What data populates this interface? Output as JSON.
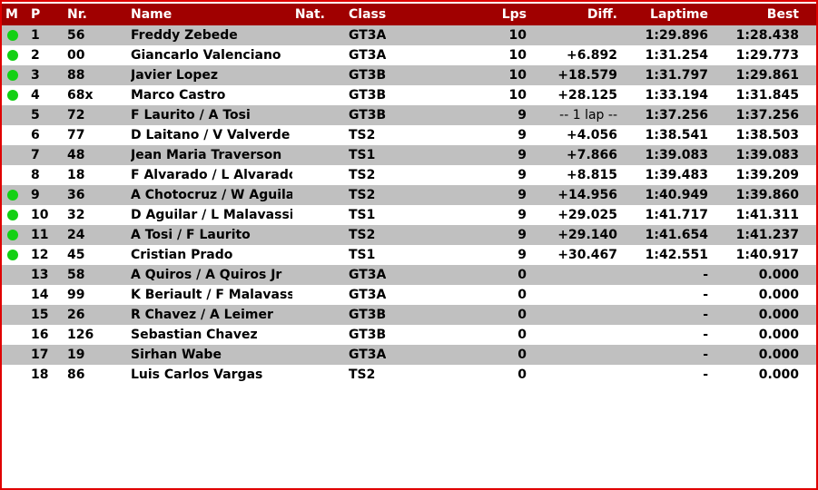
{
  "colors": {
    "header_bg": "#a00000",
    "border": "#e00000",
    "row_alt": "#c0c0c0",
    "marker": "#14d014"
  },
  "headers": {
    "m": "M",
    "p": "P",
    "nr": "Nr.",
    "name": "Name",
    "nat": "Nat.",
    "class": "Class",
    "lps": "Lps",
    "diff": "Diff.",
    "laptime": "Laptime",
    "best": "Best"
  },
  "rows": [
    {
      "marker": true,
      "p": "1",
      "nr": "56",
      "name": "Freddy Zebede",
      "class": "GT3A",
      "lps": "10",
      "diff": "",
      "laptime": "1:29.896",
      "best": "1:28.438"
    },
    {
      "marker": true,
      "p": "2",
      "nr": "00",
      "name": "Giancarlo Valenciano",
      "class": "GT3A",
      "lps": "10",
      "diff": "+6.892",
      "laptime": "1:31.254",
      "best": "1:29.773"
    },
    {
      "marker": true,
      "p": "3",
      "nr": "88",
      "name": "Javier Lopez",
      "class": "GT3B",
      "lps": "10",
      "diff": "+18.579",
      "laptime": "1:31.797",
      "best": "1:29.861"
    },
    {
      "marker": true,
      "p": "4",
      "nr": "68x",
      "name": "Marco Castro",
      "class": "GT3B",
      "lps": "10",
      "diff": "+28.125",
      "laptime": "1:33.194",
      "best": "1:31.845"
    },
    {
      "marker": false,
      "p": "5",
      "nr": "72",
      "name": "F Laurito / A Tosi",
      "class": "GT3B",
      "lps": "9",
      "diff": "-- 1 lap --",
      "laptime": "1:37.256",
      "best": "1:37.256"
    },
    {
      "marker": false,
      "p": "6",
      "nr": "77",
      "name": "D Laitano /  V Valverde",
      "class": "TS2",
      "lps": "9",
      "diff": "+4.056",
      "laptime": "1:38.541",
      "best": "1:38.503"
    },
    {
      "marker": false,
      "p": "7",
      "nr": "48",
      "name": "Jean Maria Traverson",
      "class": "TS1",
      "lps": "9",
      "diff": "+7.866",
      "laptime": "1:39.083",
      "best": "1:39.083"
    },
    {
      "marker": false,
      "p": "8",
      "nr": "18",
      "name": "F Alvarado / L Alvarado",
      "class": "TS2",
      "lps": "9",
      "diff": "+8.815",
      "laptime": "1:39.483",
      "best": "1:39.209"
    },
    {
      "marker": true,
      "p": "9",
      "nr": "36",
      "name": "A Chotocruz / W Aguilar",
      "class": "TS2",
      "lps": "9",
      "diff": "+14.956",
      "laptime": "1:40.949",
      "best": "1:39.860"
    },
    {
      "marker": true,
      "p": "10",
      "nr": "32",
      "name": "D Aguilar /  L Malavassi",
      "class": "TS1",
      "lps": "9",
      "diff": "+29.025",
      "laptime": "1:41.717",
      "best": "1:41.311"
    },
    {
      "marker": true,
      "p": "11",
      "nr": "24",
      "name": "A Tosi /  F Laurito",
      "class": "TS2",
      "lps": "9",
      "diff": "+29.140",
      "laptime": "1:41.654",
      "best": "1:41.237"
    },
    {
      "marker": true,
      "p": "12",
      "nr": "45",
      "name": "Cristian Prado",
      "class": "TS1",
      "lps": "9",
      "diff": "+30.467",
      "laptime": "1:42.551",
      "best": "1:40.917"
    },
    {
      "marker": false,
      "p": "13",
      "nr": "58",
      "name": "A Quiros / A Quiros Jr",
      "class": "GT3A",
      "lps": "0",
      "diff": "",
      "laptime": "-",
      "best": "0.000"
    },
    {
      "marker": false,
      "p": "14",
      "nr": "99",
      "name": "K Beriault / F Malavassi",
      "class": "GT3A",
      "lps": "0",
      "diff": "",
      "laptime": "-",
      "best": "0.000"
    },
    {
      "marker": false,
      "p": "15",
      "nr": "26",
      "name": "R Chavez / A Leimer",
      "class": "GT3B",
      "lps": "0",
      "diff": "",
      "laptime": "-",
      "best": "0.000"
    },
    {
      "marker": false,
      "p": "16",
      "nr": "126",
      "name": "Sebastian Chavez",
      "class": "GT3B",
      "lps": "0",
      "diff": "",
      "laptime": "-",
      "best": "0.000"
    },
    {
      "marker": false,
      "p": "17",
      "nr": "19",
      "name": "Sirhan Wabe",
      "class": "GT3A",
      "lps": "0",
      "diff": "",
      "laptime": "-",
      "best": "0.000"
    },
    {
      "marker": false,
      "p": "18",
      "nr": "86",
      "name": "Luis Carlos Vargas",
      "class": "TS2",
      "lps": "0",
      "diff": "",
      "laptime": "-",
      "best": "0.000"
    }
  ]
}
